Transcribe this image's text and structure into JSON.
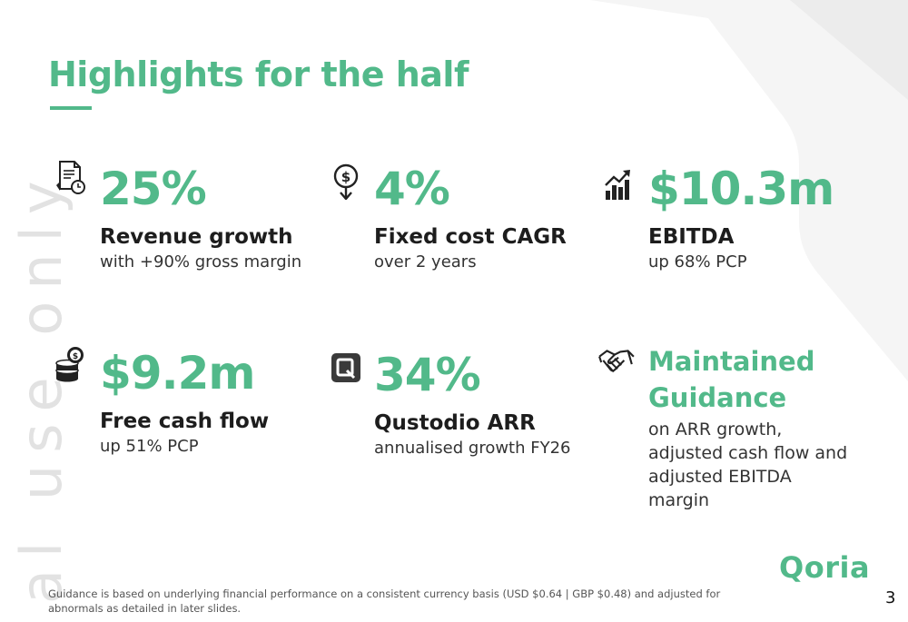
{
  "slide": {
    "title": "Highlights for the half",
    "watermark": "al use only",
    "logo": "Qoria",
    "page_number": "3",
    "footnote": "Guidance is based on underlying financial performance on a consistent currency basis (USD $0.64 | GBP $0.48) and adjusted for abnormals as detailed in later slides."
  },
  "highlights": [
    {
      "icon": "document-clock-icon",
      "metric": "25%",
      "label": "Revenue growth",
      "sub": "with +90% gross margin"
    },
    {
      "icon": "dollar-pin-down-icon",
      "metric": "4%",
      "label": "Fixed cost CAGR",
      "sub": "over 2 years"
    },
    {
      "icon": "bar-chart-up-icon",
      "metric": "$10.3m",
      "label": "EBITDA",
      "sub": "up 68% PCP"
    },
    {
      "icon": "coin-stack-icon",
      "metric": "$9.2m",
      "label": "Free cash flow",
      "sub": "up 51% PCP"
    },
    {
      "icon": "qustodio-logo-icon",
      "metric": "34%",
      "label": "Qustodio ARR",
      "sub": "annualised growth FY26"
    },
    {
      "icon": "handshake-icon",
      "metric": "Maintained Guidance",
      "label": "",
      "sub": "on ARR growth, adjusted cash flow and adjusted EBITDA margin"
    }
  ],
  "colors": {
    "accent": "#52b98a",
    "text": "#1d1d1d",
    "watermark": "#e2e2e2"
  }
}
